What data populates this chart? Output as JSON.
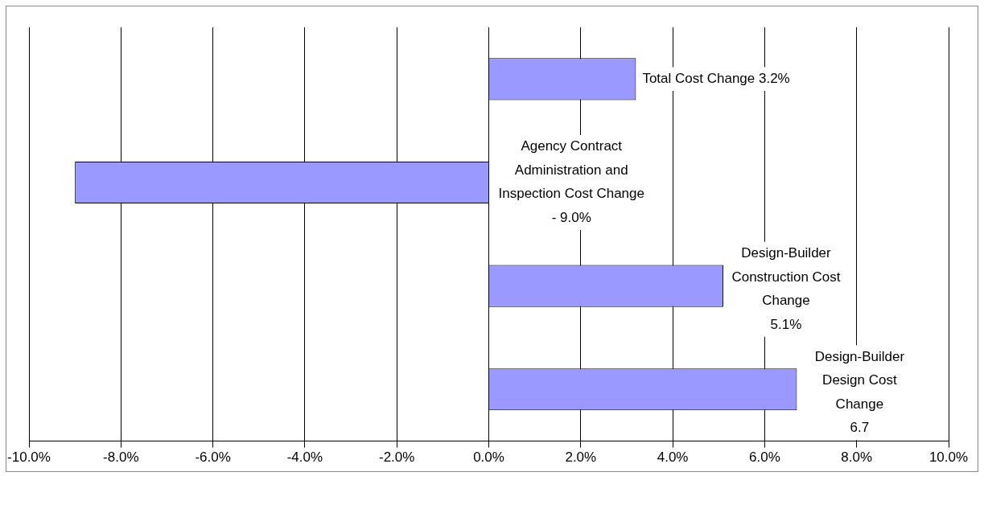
{
  "chart_data": {
    "type": "bar",
    "orientation": "horizontal",
    "categories": [
      null,
      null,
      null,
      null
    ],
    "values": [
      3.2,
      -9.0,
      5.1,
      6.7
    ],
    "color": "#9999ff",
    "value_labels": [
      "Total Cost Change 3.2%",
      "Agency Contract\nAdministration and\nInspection Cost Change\n- 9.0%",
      "Design-Builder\nConstruction Cost\nChange\n5.1%",
      "Design-Builder\nDesign Cost\nChange\n6.7"
    ],
    "xlim": [
      -10,
      10
    ],
    "xticks": [
      {
        "value": -10,
        "label": "-10.0%"
      },
      {
        "value": -8,
        "label": "-8.0%"
      },
      {
        "value": -6,
        "label": "-6.0%"
      },
      {
        "value": -4,
        "label": "-4.0%"
      },
      {
        "value": -2,
        "label": "-2.0%"
      },
      {
        "value": 0,
        "label": "0.0%"
      },
      {
        "value": 2,
        "label": "2.0%"
      },
      {
        "value": 4,
        "label": "4.0%"
      },
      {
        "value": 6,
        "label": "6.0%"
      },
      {
        "value": 8,
        "label": "8.0%"
      },
      {
        "value": 10,
        "label": "10.0%"
      }
    ],
    "grid": "x",
    "legend": false,
    "tick_labels": "x"
  }
}
